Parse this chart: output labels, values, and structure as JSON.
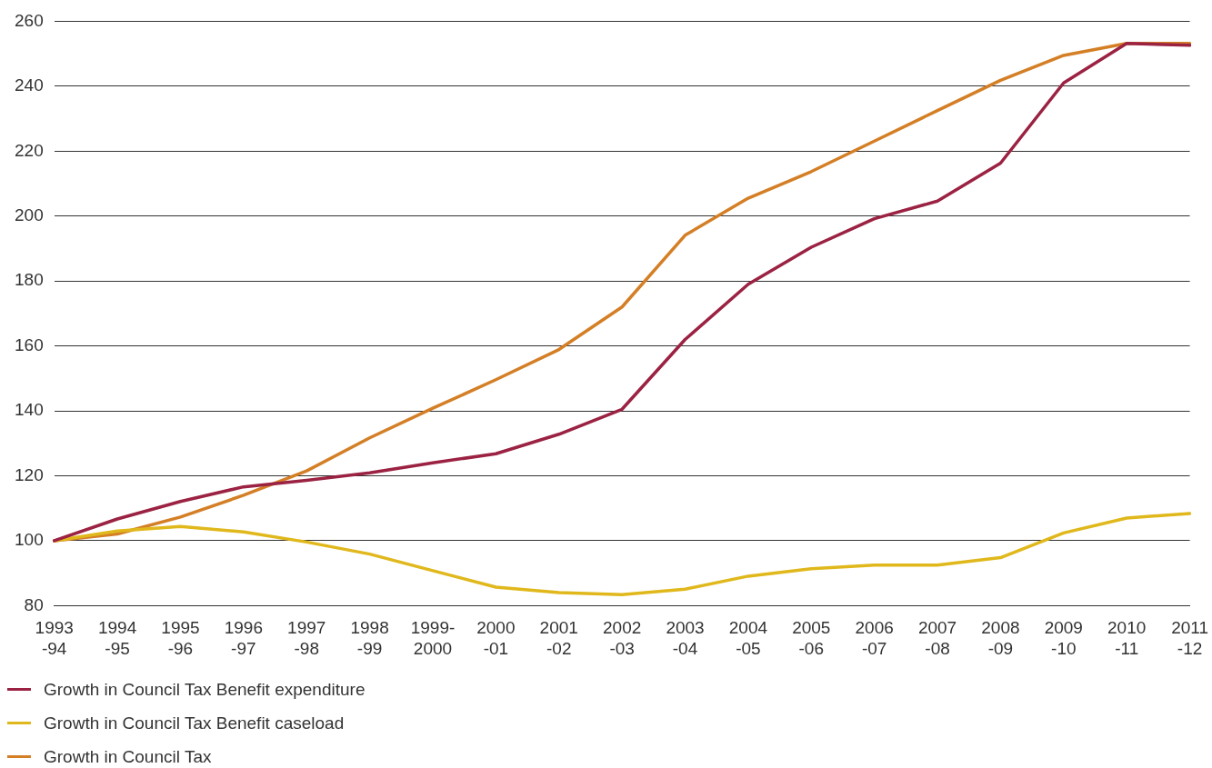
{
  "chart_data": {
    "type": "line",
    "categories": [
      "1993\n-94",
      "1994\n-95",
      "1995\n-96",
      "1996\n-97",
      "1997\n-98",
      "1998\n-99",
      "1999-\n2000",
      "2000\n-01",
      "2001\n-02",
      "2002\n-03",
      "2003\n-04",
      "2004\n-05",
      "2005\n-06",
      "2006\n-07",
      "2007\n-08",
      "2008\n-09",
      "2009\n-10",
      "2010\n-11",
      "2011\n-12"
    ],
    "series": [
      {
        "name": "Growth in Council Tax Benefit expenditure",
        "color": "#9b2242",
        "values": [
          100,
          106.7,
          112.1,
          116.6,
          118.6,
          120.9,
          124,
          126.8,
          132.8,
          140.5,
          162,
          179,
          190.4,
          199.2,
          204.6,
          216.3,
          241,
          253.2,
          252.6
        ]
      },
      {
        "name": "Growth in Council Tax Benefit caseload",
        "color": "#e0b81c",
        "values": [
          100,
          103,
          104.4,
          102.7,
          99.6,
          95.9,
          90.8,
          85.7,
          84,
          83.4,
          85.1,
          89.1,
          91.4,
          92.5,
          92.5,
          94.8,
          102.4,
          107,
          108.4
        ]
      },
      {
        "name": "Growth in Council Tax",
        "color": "#d47f26",
        "values": [
          100,
          102.1,
          107.3,
          114,
          121.5,
          131.7,
          140.8,
          149.6,
          158.9,
          172,
          194.1,
          205.5,
          213.7,
          223.1,
          232.5,
          241.8,
          249.5,
          253.2,
          253.2
        ]
      }
    ],
    "ylim": [
      80,
      260
    ],
    "yticks": [
      80,
      100,
      120,
      140,
      160,
      180,
      200,
      220,
      240,
      260
    ],
    "grid": "y",
    "legend": "bottom left",
    "marker": "none",
    "line_style": "solid"
  }
}
